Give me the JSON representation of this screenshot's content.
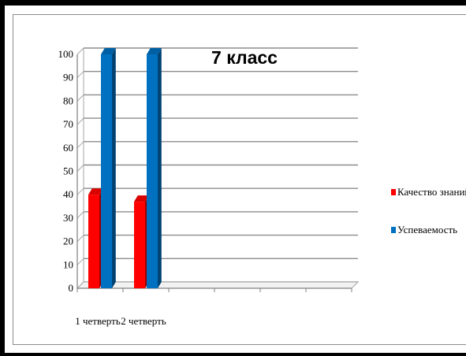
{
  "chart_data": {
    "type": "bar",
    "title": "7 класс",
    "categories": [
      "1 четверть",
      "2 четверть"
    ],
    "series": [
      {
        "name": "Качество знаний",
        "values": [
          40,
          37
        ],
        "color": "#ff0000"
      },
      {
        "name": "Успеваемость",
        "values": [
          100,
          100
        ],
        "color": "#0070c0"
      }
    ],
    "ylim": [
      0,
      100
    ],
    "yticks": [
      "0",
      "10",
      "20",
      "30",
      "40",
      "50",
      "60",
      "70",
      "80",
      "90",
      "100"
    ],
    "grid": true,
    "legend_position": "right",
    "xlabel": "",
    "ylabel": ""
  }
}
